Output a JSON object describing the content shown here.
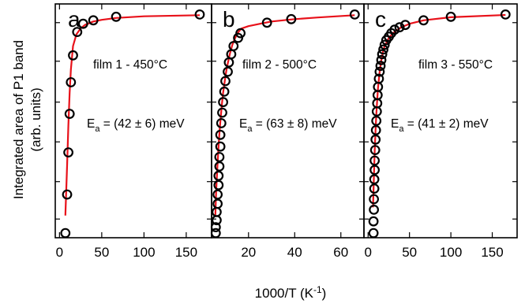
{
  "colors": {
    "fit": "#e8111a",
    "points": "#000000",
    "frame": "#000000"
  },
  "figure": {
    "xlabel_main": "1000/T (K",
    "xlabel_sup": "-1",
    "xlabel_close": ")",
    "ylabel_line1": "Integrated area of P1 band",
    "ylabel_line2": "(arb. units)"
  },
  "chart_data": [
    {
      "type": "scatter",
      "panel": "a",
      "film": "film 1 - 450°C",
      "ea": {
        "prefix": "E",
        "sub": "a",
        "rest": " = (42 ± 6) meV"
      },
      "xlim": [
        -5,
        180
      ],
      "xticks": [
        0,
        50,
        100,
        150
      ],
      "ylim": [
        0,
        1
      ],
      "y_scale": "log",
      "series": [
        {
          "x": [
            7,
            9,
            10.5,
            12,
            13.5,
            16,
            21,
            28,
            40,
            67,
            166
          ],
          "y": [
            0.02,
            0.185,
            0.365,
            0.53,
            0.665,
            0.78,
            0.88,
            0.915,
            0.93,
            0.945,
            0.955
          ]
        }
      ],
      "fit": {
        "x": [
          7,
          9,
          10.5,
          12,
          13.5,
          16,
          20,
          25,
          30,
          40,
          50,
          67,
          100,
          166
        ],
        "y": [
          0.095,
          0.31,
          0.48,
          0.62,
          0.72,
          0.82,
          0.87,
          0.895,
          0.91,
          0.925,
          0.932,
          0.94,
          0.947,
          0.952
        ]
      }
    },
    {
      "type": "scatter",
      "panel": "b",
      "film": "film 2 - 500°C",
      "ea": {
        "prefix": "E",
        "sub": "a",
        "rest": " = (63 ± 8) meV"
      },
      "xlim": [
        4,
        70
      ],
      "xticks": [
        20,
        40,
        60
      ],
      "ylim": [
        0,
        1
      ],
      "y_scale": "log",
      "series": [
        {
          "x": [
            5.8,
            5.8,
            6.2,
            6.2,
            6.6,
            6.6,
            7.0,
            7.0,
            7.4,
            7.4,
            7.8,
            7.8,
            8.2,
            8.6,
            9.0,
            9.5,
            10,
            11,
            11.5,
            12.5,
            13.5,
            15.5,
            16.5,
            28,
            38.5,
            66
          ],
          "y": [
            0.02,
            0.045,
            0.075,
            0.11,
            0.145,
            0.185,
            0.225,
            0.265,
            0.305,
            0.345,
            0.39,
            0.44,
            0.49,
            0.535,
            0.58,
            0.625,
            0.67,
            0.71,
            0.75,
            0.785,
            0.82,
            0.855,
            0.875,
            0.92,
            0.935,
            0.955
          ]
        }
      ],
      "fit": {
        "x": [
          5.6,
          6,
          6.5,
          7,
          7.5,
          8,
          8.5,
          9,
          9.5,
          10,
          10.5,
          11,
          12,
          13,
          14,
          15,
          16,
          17,
          20,
          25,
          30,
          40,
          50,
          66
        ],
        "y": [
          0.09,
          0.2,
          0.3,
          0.39,
          0.46,
          0.52,
          0.575,
          0.62,
          0.655,
          0.69,
          0.72,
          0.745,
          0.79,
          0.825,
          0.85,
          0.87,
          0.885,
          0.895,
          0.905,
          0.915,
          0.925,
          0.935,
          0.942,
          0.952
        ]
      }
    },
    {
      "type": "scatter",
      "panel": "c",
      "film": "film 3 - 550°C",
      "ea": {
        "prefix": "E",
        "sub": "a",
        "rest": " = (41 ± 2) meV"
      },
      "xlim": [
        -5,
        180
      ],
      "xticks": [
        0,
        50,
        100,
        150
      ],
      "ylim": [
        0,
        1
      ],
      "y_scale": "log",
      "series": [
        {
          "x": [
            6.5,
            6.5,
            7,
            7,
            7.5,
            7.5,
            8,
            8,
            8.5,
            9,
            9.5,
            10,
            10.5,
            11,
            11.5,
            12,
            13,
            14,
            15,
            16,
            17,
            18.5,
            20,
            22,
            25,
            28,
            32,
            38,
            45,
            67,
            100,
            166
          ],
          "y": [
            0.02,
            0.07,
            0.12,
            0.165,
            0.21,
            0.25,
            0.29,
            0.33,
            0.375,
            0.42,
            0.46,
            0.5,
            0.54,
            0.575,
            0.61,
            0.645,
            0.68,
            0.71,
            0.735,
            0.76,
            0.785,
            0.805,
            0.825,
            0.845,
            0.86,
            0.875,
            0.89,
            0.9,
            0.91,
            0.93,
            0.945,
            0.955
          ]
        }
      ],
      "fit": {
        "x": [
          6,
          6.5,
          7,
          8,
          9,
          10,
          11,
          12,
          14,
          16,
          18,
          20,
          25,
          30,
          40,
          50,
          67,
          100,
          166
        ],
        "y": [
          0.13,
          0.2,
          0.26,
          0.37,
          0.46,
          0.53,
          0.59,
          0.64,
          0.71,
          0.76,
          0.795,
          0.82,
          0.855,
          0.875,
          0.9,
          0.915,
          0.93,
          0.943,
          0.953
        ]
      }
    }
  ]
}
